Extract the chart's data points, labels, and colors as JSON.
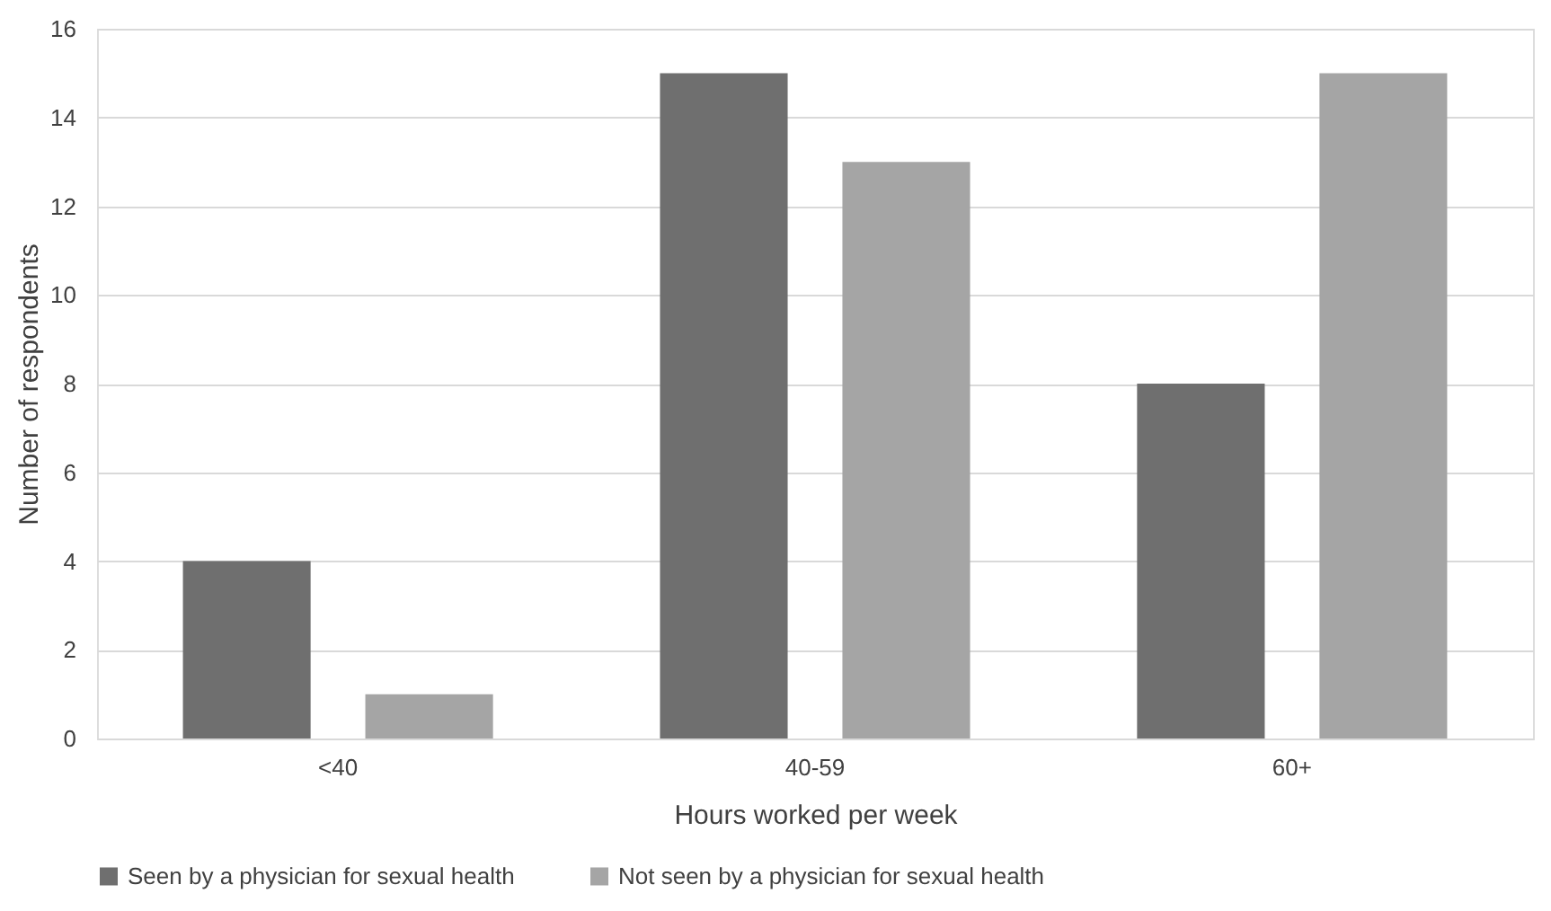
{
  "chart_data": {
    "type": "bar",
    "xlabel": "Hours worked per week",
    "ylabel": "Number of respondents",
    "categories": [
      "<40",
      "40-59",
      "60+"
    ],
    "series": [
      {
        "name": "Seen by a physician for sexual health",
        "color": "#6f6f6f",
        "values": [
          4,
          15,
          8
        ]
      },
      {
        "name": "Not seen by a physician for sexual health",
        "color": "#a5a5a5",
        "values": [
          1,
          13,
          15
        ]
      }
    ],
    "ylim": [
      0,
      16
    ],
    "yticks": [
      0,
      2,
      4,
      6,
      8,
      10,
      12,
      14,
      16
    ],
    "grid": "y",
    "legend": "bottom"
  }
}
